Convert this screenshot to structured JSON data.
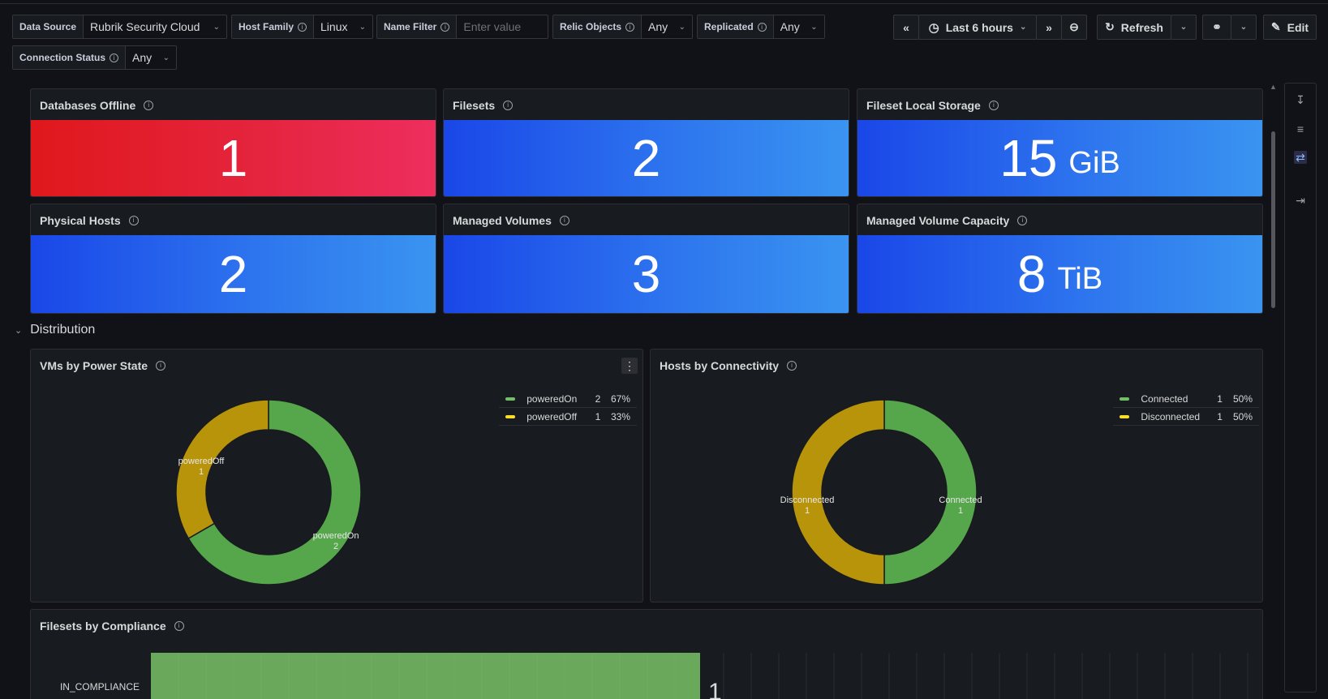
{
  "variables": {
    "data_source": {
      "label": "Data Source",
      "value": "Rubrik Security Cloud"
    },
    "host_family": {
      "label": "Host Family",
      "value": "Linux"
    },
    "name_filter": {
      "label": "Name Filter",
      "placeholder": "Enter value"
    },
    "relic_objects": {
      "label": "Relic Objects",
      "value": "Any"
    },
    "replicated": {
      "label": "Replicated",
      "value": "Any"
    },
    "connection_status": {
      "label": "Connection Status",
      "value": "Any"
    }
  },
  "toolbar": {
    "time_range": "Last 6 hours",
    "refresh_label": "Refresh",
    "edit_label": "Edit"
  },
  "stats": [
    {
      "title": "Databases Offline",
      "value": "1",
      "unit": "",
      "color": "#e0181c"
    },
    {
      "title": "Filesets",
      "value": "2",
      "unit": "",
      "color": "#2d74ee"
    },
    {
      "title": "Fileset Local Storage",
      "value": "15",
      "unit": "GiB",
      "color": "#2d74ee"
    },
    {
      "title": "Physical Hosts",
      "value": "2",
      "unit": "",
      "color": "#2d74ee"
    },
    {
      "title": "Managed Volumes",
      "value": "3",
      "unit": "",
      "color": "#2d74ee"
    },
    {
      "title": "Managed Volume Capacity",
      "value": "8",
      "unit": "TiB",
      "color": "#2d74ee"
    }
  ],
  "section_title": "Distribution",
  "colors": {
    "green": "#56a64b",
    "yellow": "#c4a000"
  },
  "chart_data": [
    {
      "type": "pie",
      "title": "VMs by Power State",
      "categories": [
        "poweredOn",
        "poweredOff"
      ],
      "values": [
        2,
        1
      ],
      "percents": [
        "67%",
        "33%"
      ],
      "colors": [
        "#56a64b",
        "#b8940a"
      ],
      "legend": "top-right"
    },
    {
      "type": "pie",
      "title": "Hosts by Connectivity",
      "categories": [
        "Connected",
        "Disconnected"
      ],
      "values": [
        1,
        1
      ],
      "percents": [
        "50%",
        "50%"
      ],
      "colors": [
        "#56a64b",
        "#b8940a"
      ],
      "legend": "top-right"
    },
    {
      "type": "bar",
      "title": "Filesets by Compliance",
      "categories": [
        "IN_COMPLIANCE"
      ],
      "values": [
        1
      ],
      "colors": [
        "#6aa85c"
      ]
    }
  ]
}
